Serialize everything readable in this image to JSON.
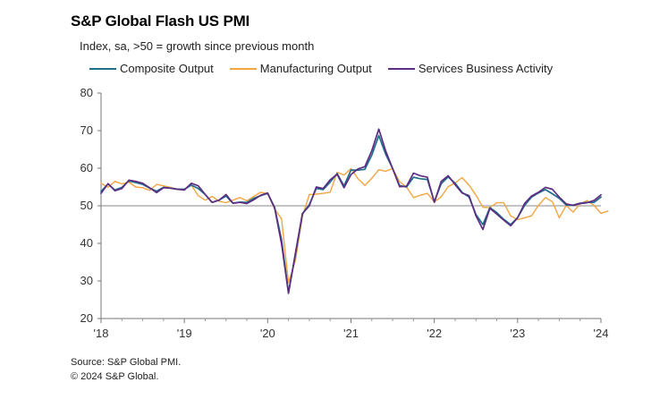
{
  "chart_data": {
    "type": "line",
    "title": "S&P Global Flash US PMI",
    "subtitle": "Index, sa, >50 = growth since previous month",
    "ylim": [
      20,
      80
    ],
    "yticks": [
      20,
      30,
      40,
      50,
      60,
      70,
      80
    ],
    "reference_line": 50,
    "grid": false,
    "legend_position": "top",
    "x_start": "2018-01",
    "xtick_labels": [
      "'18",
      "'19",
      "'20",
      "'21",
      "'22",
      "'23",
      "'24"
    ],
    "series": [
      {
        "name": "Composite Output",
        "color": "#1f6f8b",
        "values": [
          53.8,
          55.8,
          54.2,
          54.9,
          56.6,
          56.2,
          55.7,
          54.7,
          53.9,
          54.9,
          54.7,
          54.4,
          54.4,
          55.5,
          54.6,
          53.0,
          50.9,
          51.5,
          52.6,
          50.7,
          51.0,
          50.9,
          52.0,
          52.7,
          53.3,
          49.6,
          40.9,
          27.0,
          37.0,
          47.9,
          50.3,
          54.6,
          54.3,
          56.3,
          58.6,
          55.3,
          59.5,
          59.5,
          59.7,
          63.5,
          68.7,
          63.7,
          59.9,
          55.4,
          55.0,
          57.6,
          57.2,
          57.0,
          51.1,
          55.9,
          57.7,
          56.0,
          53.6,
          52.3,
          47.7,
          45.0,
          49.5,
          48.2,
          46.4,
          45.0,
          46.8,
          50.1,
          52.3,
          53.4,
          54.3,
          53.2,
          52.0,
          50.2,
          50.2,
          50.7,
          50.9,
          50.9,
          52.3
        ],
        "last_value_date": "2024-01"
      },
      {
        "name": "Manufacturing Output",
        "color": "#f2a541",
        "values": [
          56.0,
          54.9,
          56.5,
          55.8,
          56.3,
          55.0,
          54.8,
          54.1,
          55.7,
          55.3,
          54.9,
          54.4,
          54.4,
          55.5,
          52.7,
          51.5,
          52.5,
          51.2,
          50.8,
          51.5,
          52.2,
          51.3,
          52.5,
          53.6,
          53.2,
          49.2,
          46.5,
          29.5,
          35.5,
          47.2,
          53.0,
          53.1,
          53.3,
          53.6,
          58.9,
          58.2,
          59.9,
          57.2,
          55.4,
          57.3,
          59.6,
          59.2,
          59.9,
          56.4,
          55.0,
          52.2,
          52.8,
          53.3,
          51.0,
          52.4,
          55.1,
          56.1,
          57.5,
          55.5,
          52.8,
          49.6,
          49.5,
          50.8,
          50.8,
          47.3,
          46.3,
          46.8,
          47.3,
          50.1,
          52.2,
          51.1,
          46.8,
          50.1,
          48.3,
          50.5,
          51.4,
          50.1,
          48.0,
          48.6
        ],
        "last_value_date": "2024-02"
      },
      {
        "name": "Services Business Activity",
        "color": "#5c2d82",
        "values": [
          53.3,
          55.9,
          54.0,
          54.6,
          56.8,
          56.5,
          56.0,
          54.8,
          53.5,
          54.8,
          54.7,
          54.4,
          54.2,
          56.0,
          55.3,
          53.0,
          50.9,
          51.5,
          53.0,
          50.7,
          50.9,
          50.6,
          51.6,
          52.8,
          53.4,
          49.4,
          39.8,
          26.7,
          37.5,
          47.9,
          50.0,
          55.0,
          54.6,
          56.9,
          58.4,
          54.8,
          58.3,
          59.8,
          60.4,
          64.7,
          70.4,
          64.6,
          59.9,
          55.1,
          55.2,
          58.7,
          58.0,
          57.6,
          50.9,
          56.5,
          58.0,
          55.6,
          53.4,
          52.7,
          47.3,
          43.7,
          49.3,
          47.8,
          46.2,
          44.7,
          46.8,
          50.6,
          52.6,
          53.6,
          54.9,
          54.4,
          52.3,
          50.5,
          50.1,
          50.6,
          50.8,
          51.4,
          52.9
        ],
        "last_value_date": "2024-01"
      }
    ]
  },
  "footer": {
    "source": "Source: S&P Global PMI.",
    "copyright": "© 2024 S&P Global."
  }
}
